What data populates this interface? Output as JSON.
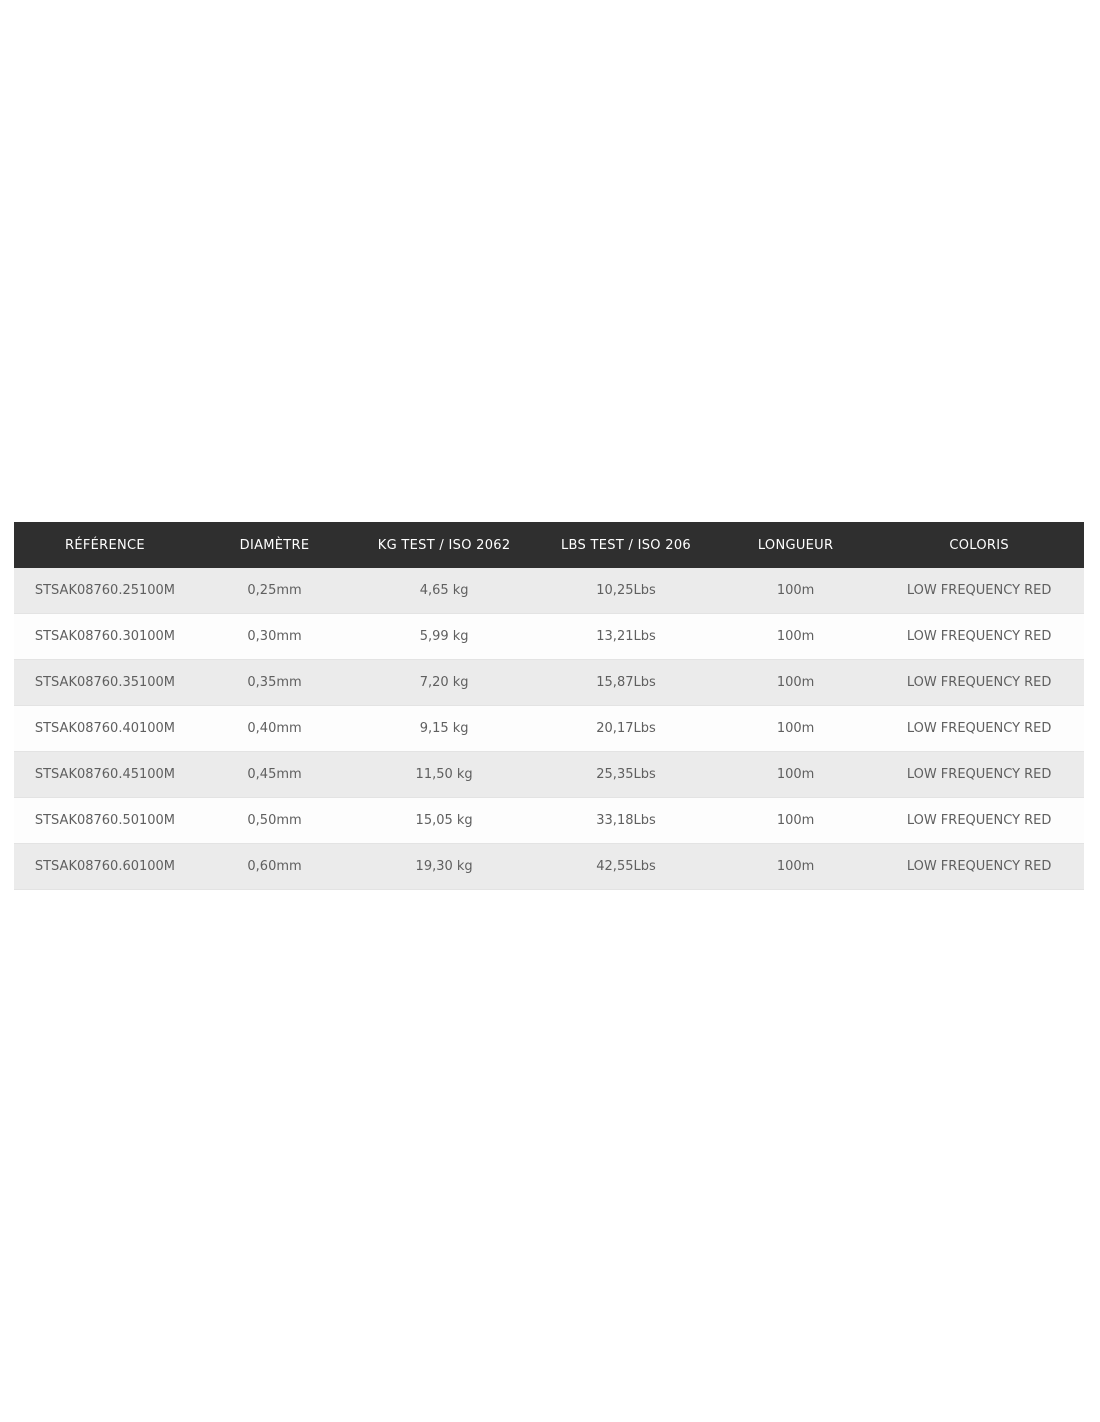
{
  "colors": {
    "header_bg": "#2f2f2f",
    "header_text": "#ffffff",
    "row_alt_bg": "#ebebeb",
    "row_bg": "#fdfdfd",
    "cell_text": "#5f5f5f"
  },
  "table": {
    "columns": [
      "RÉFÉRENCE",
      "DIAMÈTRE",
      "KG TEST / ISO 2062",
      "LBS TEST / ISO 206",
      "LONGUEUR",
      "COLORIS"
    ],
    "rows": [
      [
        "STSAK08760.25100M",
        "0,25mm",
        "4,65 kg",
        "10,25Lbs",
        "100m",
        "LOW FREQUENCY RED"
      ],
      [
        "STSAK08760.30100M",
        "0,30mm",
        "5,99 kg",
        "13,21Lbs",
        "100m",
        "LOW FREQUENCY RED"
      ],
      [
        "STSAK08760.35100M",
        "0,35mm",
        "7,20 kg",
        "15,87Lbs",
        "100m",
        "LOW FREQUENCY RED"
      ],
      [
        "STSAK08760.40100M",
        "0,40mm",
        "9,15 kg",
        "20,17Lbs",
        "100m",
        "LOW FREQUENCY RED"
      ],
      [
        "STSAK08760.45100M",
        "0,45mm",
        "11,50 kg",
        "25,35Lbs",
        "100m",
        "LOW FREQUENCY RED"
      ],
      [
        "STSAK08760.50100M",
        "0,50mm",
        "15,05 kg",
        "33,18Lbs",
        "100m",
        "LOW FREQUENCY RED"
      ],
      [
        "STSAK08760.60100M",
        "0,60mm",
        "19,30 kg",
        "42,55Lbs",
        "100m",
        "LOW FREQUENCY RED"
      ]
    ]
  }
}
